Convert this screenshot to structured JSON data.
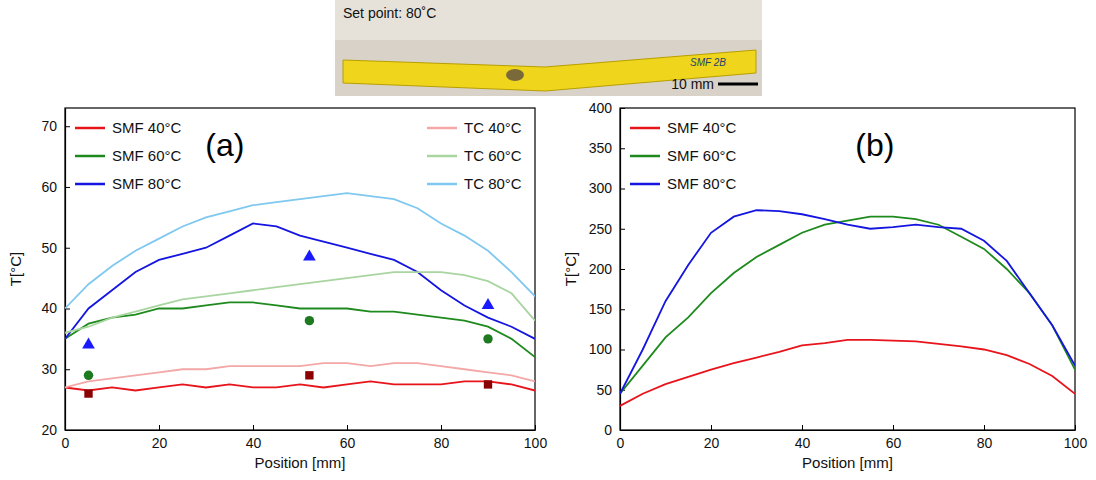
{
  "photo": {
    "label": "Set point: 80˚C",
    "specimen_marking": "SMF 2B",
    "scale_bar": "10 mm"
  },
  "chart_data": [
    {
      "type": "line",
      "panel_label": "(a)",
      "x_label": "Position [mm]",
      "y_label": "T[°C]",
      "xlim": [
        0,
        100
      ],
      "xticks": [
        0,
        20,
        40,
        60,
        80,
        100
      ],
      "ylim": [
        20,
        73
      ],
      "yticks": [
        20,
        30,
        40,
        50,
        60,
        70
      ],
      "legend": "upper left",
      "x": [
        0,
        5,
        10,
        15,
        20,
        25,
        30,
        35,
        40,
        45,
        50,
        55,
        60,
        65,
        70,
        75,
        80,
        85,
        90,
        95,
        100
      ],
      "series": [
        {
          "name": "SMF 40°C",
          "color": "#e8141c",
          "values": [
            27,
            26.5,
            27,
            26.5,
            27,
            27.5,
            27,
            27.5,
            27,
            27,
            27.5,
            27,
            27.5,
            28,
            27.5,
            27.5,
            27.5,
            28,
            28,
            27.5,
            26.5
          ]
        },
        {
          "name": "SMF 60°C",
          "color": "#1e8a1e",
          "values": [
            35,
            37.5,
            38.5,
            39,
            40,
            40,
            40.5,
            41,
            41,
            40.5,
            40,
            40,
            40,
            39.5,
            39.5,
            39,
            38.5,
            38,
            37,
            35,
            32
          ]
        },
        {
          "name": "SMF 80°C",
          "color": "#1515e0",
          "values": [
            35,
            40,
            43,
            46,
            48,
            49,
            50,
            52,
            54,
            53.5,
            52,
            51,
            50,
            49,
            48,
            46,
            43,
            40.5,
            38.5,
            37,
            35
          ]
        },
        {
          "name": "TC 40°C",
          "color": "#f4a7a7",
          "values": [
            27,
            28,
            28.5,
            29,
            29.5,
            30,
            30,
            30.5,
            30.5,
            30.5,
            30.5,
            31,
            31,
            30.5,
            31,
            31,
            30.5,
            30,
            29.5,
            29,
            28
          ]
        },
        {
          "name": "TC 60°C",
          "color": "#a8d5a0",
          "values": [
            36,
            37,
            38.5,
            39.5,
            40.5,
            41.5,
            42,
            42.5,
            43,
            43.5,
            44,
            44.5,
            45,
            45.5,
            46,
            46,
            46,
            45.5,
            44.5,
            42.5,
            38
          ]
        },
        {
          "name": "TC 80°C",
          "color": "#7fc8f0",
          "values": [
            40,
            44,
            47,
            49.5,
            51.5,
            53.5,
            55,
            56,
            57,
            57.5,
            58,
            58.5,
            59,
            58.5,
            58,
            56.5,
            54,
            52,
            49.5,
            46,
            42
          ]
        },
        {
          "type": "scatter",
          "marker": "triangle",
          "color": "#1a1aff",
          "x": [
            5,
            52,
            90
          ],
          "values": [
            34,
            48.5,
            40.5
          ]
        },
        {
          "type": "scatter",
          "marker": "circle",
          "color": "#1e7a1e",
          "x": [
            5,
            52,
            90
          ],
          "values": [
            29,
            38,
            35
          ]
        },
        {
          "type": "scatter",
          "marker": "square",
          "color": "#8b0000",
          "x": [
            5,
            52,
            90
          ],
          "values": [
            26,
            29,
            27.5
          ]
        }
      ]
    },
    {
      "type": "line",
      "panel_label": "(b)",
      "x_label": "Position [mm]",
      "y_label": "T[°C]",
      "xlim": [
        0,
        100
      ],
      "xticks": [
        0,
        20,
        40,
        60,
        80,
        100
      ],
      "ylim": [
        0,
        400
      ],
      "yticks": [
        0,
        50,
        100,
        150,
        200,
        250,
        300,
        350,
        400
      ],
      "legend": "upper left",
      "x": [
        0,
        5,
        10,
        15,
        20,
        25,
        30,
        35,
        40,
        45,
        50,
        55,
        60,
        65,
        70,
        75,
        80,
        85,
        90,
        95,
        100
      ],
      "series": [
        {
          "name": "SMF 40°C",
          "color": "#e8141c",
          "values": [
            30,
            45,
            57,
            66,
            75,
            83,
            90,
            97,
            105,
            108,
            112,
            112,
            111,
            110,
            107,
            104,
            100,
            93,
            82,
            67,
            45
          ]
        },
        {
          "name": "SMF 60°C",
          "color": "#1e8a1e",
          "values": [
            45,
            80,
            115,
            140,
            170,
            195,
            215,
            230,
            245,
            255,
            260,
            265,
            265,
            262,
            255,
            240,
            225,
            200,
            170,
            130,
            75
          ]
        },
        {
          "name": "SMF 80°C",
          "color": "#1515e0",
          "values": [
            45,
            100,
            160,
            205,
            245,
            265,
            273,
            272,
            268,
            262,
            255,
            250,
            252,
            255,
            252,
            250,
            235,
            210,
            170,
            130,
            80
          ]
        }
      ]
    }
  ]
}
